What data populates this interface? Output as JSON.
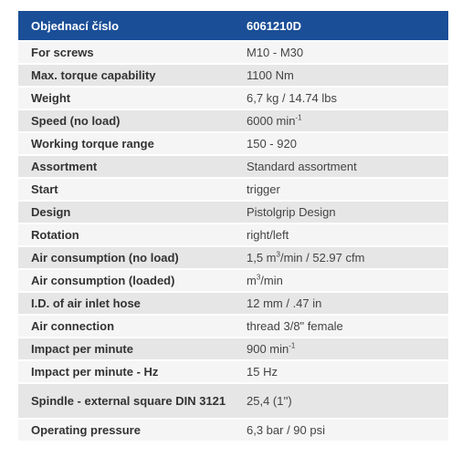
{
  "header": {
    "label": "Objednací číslo",
    "value": "6061210D"
  },
  "rows": [
    {
      "label": "For screws",
      "value": "M10 - M30"
    },
    {
      "label": "Max. torque capability",
      "value": "1100 Nm"
    },
    {
      "label": "Weight",
      "value": "6,7 kg / 14.74 lbs"
    },
    {
      "label": "Speed (no load)",
      "value": "6000 min",
      "sup": "-1"
    },
    {
      "label": "Working torque range",
      "value": "150 - 920"
    },
    {
      "label": "Assortment",
      "value": "Standard assortment"
    },
    {
      "label": "Start",
      "value": "trigger"
    },
    {
      "label": "Design",
      "value": "Pistolgrip Design"
    },
    {
      "label": "Rotation",
      "value": "right/left"
    },
    {
      "label": "Air consumption (no load)",
      "value": "1,5 m",
      "sup": "3",
      "suffix": "/min / 52.97 cfm"
    },
    {
      "label": "Air consumption (loaded)",
      "value": "m",
      "sup": "3",
      "suffix": "/min"
    },
    {
      "label": "I.D. of air inlet hose",
      "value": "12 mm / .47 in"
    },
    {
      "label": "Air connection",
      "value": "thread 3/8\" female"
    },
    {
      "label": "Impact per minute",
      "value": "900 min",
      "sup": "-1"
    },
    {
      "label": "Impact per minute - Hz",
      "value": "15 Hz"
    },
    {
      "label": "Spindle - external square DIN 3121",
      "value": "25,4 (1'')"
    },
    {
      "label": "Operating pressure",
      "value": "6,3 bar / 90 psi"
    }
  ],
  "colors": {
    "header_bg": "#1a4e97",
    "row_odd": "#e6e6e6",
    "row_even": "#f5f5f5"
  }
}
